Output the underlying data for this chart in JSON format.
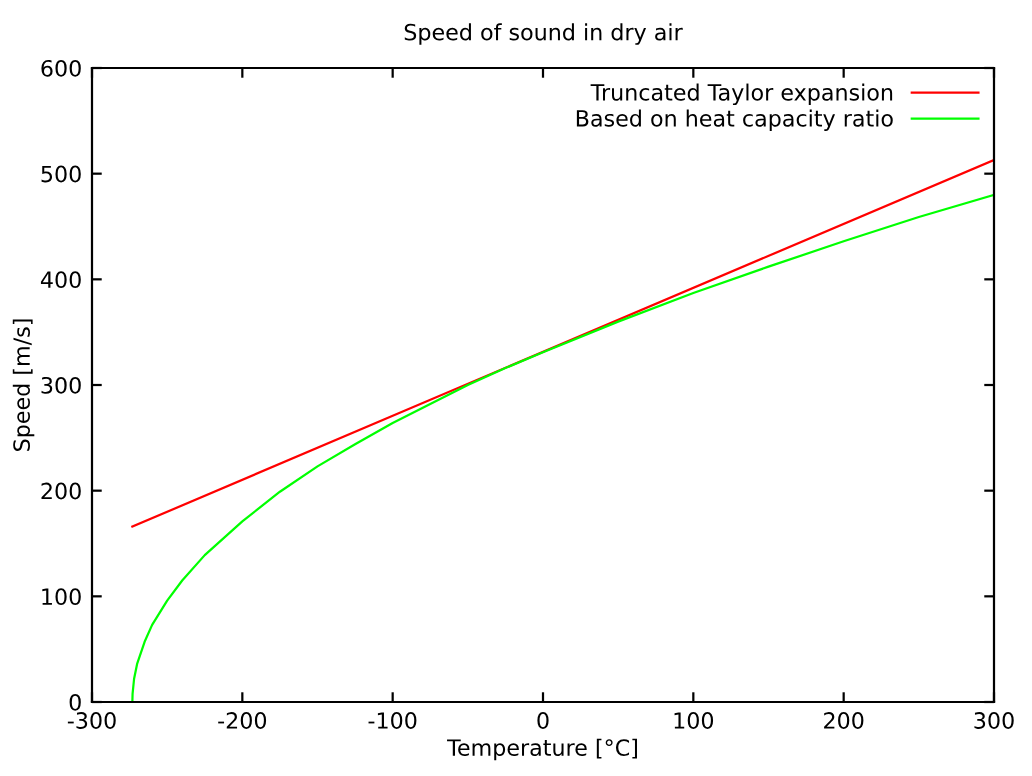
{
  "chart_data": {
    "type": "line",
    "title": "Speed of sound in dry air",
    "xlabel": "Temperature [°C]",
    "ylabel": "Speed [m/s]",
    "xlim": [
      -300,
      300
    ],
    "xticks": [
      -300,
      -200,
      -100,
      0,
      100,
      200,
      300
    ],
    "ylim": [
      0,
      600
    ],
    "yticks": [
      0,
      100,
      200,
      300,
      400,
      500,
      600
    ],
    "legend": "top right",
    "grid": false,
    "marker": "none",
    "line_style": "solid",
    "series": [
      {
        "name": "Truncated Taylor expansion",
        "color": "#ff0000",
        "x": [
          -273.15,
          300
        ],
        "values": [
          166,
          513
        ]
      },
      {
        "name": "Based on heat capacity ratio",
        "color": "#00ff00",
        "x": [
          -273.15,
          -273,
          -272,
          -270,
          -265,
          -260,
          -250,
          -240,
          -225,
          -200,
          -175,
          -150,
          -125,
          -100,
          -75,
          -50,
          -25,
          0,
          50,
          100,
          150,
          200,
          250,
          300
        ],
        "values": [
          0,
          8,
          22,
          36,
          57,
          73,
          96,
          115,
          139,
          171,
          199,
          223,
          244,
          264,
          282,
          300,
          316,
          331,
          360,
          387,
          412,
          436,
          459,
          480
        ]
      }
    ]
  }
}
